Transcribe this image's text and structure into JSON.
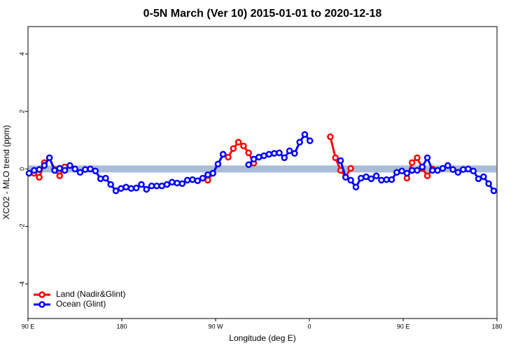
{
  "chart_data": {
    "type": "line",
    "title": "0-5N March (Ver 10)   2015-01-01 to 2020-12-18",
    "x_label": "Longitude (deg E)",
    "y_label": "XCO2 - MLO trend (ppm)",
    "x": [
      91,
      95.9,
      100.8,
      105.7,
      110.6,
      115.5,
      120.4,
      125.3,
      130.2,
      135.1,
      140,
      144.9,
      149.8,
      154.7,
      159.6,
      164.5,
      169.4,
      174.3,
      179.2,
      184.1,
      189,
      193.9,
      198.8,
      203.7,
      208.6,
      213.5,
      218.4,
      223.3,
      228.2,
      233.1,
      238,
      242.9,
      247.8,
      252.7,
      257.6,
      262.5,
      267.4,
      272.3,
      277.2,
      282.1,
      287,
      291.9,
      296.8,
      301.7,
      306.6,
      311.5,
      316.4,
      321.3,
      326.2,
      331.1,
      336,
      340.9,
      345.8,
      350.7,
      355.6,
      360.5,
      365.4,
      370.3,
      375.2,
      380.1,
      385,
      389.9,
      394.8,
      399.7,
      404.6,
      409.5,
      414.4,
      419.3,
      424.2,
      429.1,
      434,
      438.9,
      443.8,
      448.7,
      453.6,
      458.5,
      463.4,
      468.3,
      473.2,
      478.1,
      483,
      487.9,
      492.8,
      497.7,
      502.6,
      507.5,
      512.4,
      517.3,
      522.2,
      527.1,
      532,
      536.9
    ],
    "series": [
      {
        "name": "Land (Nadir&Glint)",
        "color": "#ff0000",
        "values": [
          null,
          -0.15,
          -0.29,
          0.22,
          0.39,
          -0.02,
          -0.24,
          0.07,
          null,
          null,
          null,
          null,
          null,
          null,
          null,
          null,
          null,
          null,
          null,
          null,
          null,
          null,
          null,
          null,
          null,
          null,
          null,
          null,
          null,
          null,
          null,
          null,
          null,
          null,
          null,
          -0.39,
          -0.15,
          0.17,
          0.51,
          0.41,
          0.71,
          0.93,
          0.8,
          0.56,
          0.2,
          null,
          null,
          null,
          null,
          null,
          null,
          null,
          null,
          null,
          null,
          null,
          null,
          null,
          null,
          1.12,
          0.39,
          -0.05,
          -0.27,
          0.02,
          null,
          null,
          null,
          null,
          null,
          null,
          null,
          null,
          null,
          null,
          -0.32,
          0.22,
          0.39,
          0.02,
          -0.24,
          0,
          null,
          null,
          null,
          null,
          null,
          null,
          null,
          null,
          null,
          null,
          null,
          null
        ]
      },
      {
        "name": "Ocean (Glint)",
        "color": "#0000ff",
        "values": [
          -0.15,
          -0.05,
          -0.02,
          0.12,
          0.39,
          -0.05,
          0.02,
          -0.05,
          0.12,
          0,
          -0.12,
          -0.02,
          0,
          -0.07,
          -0.34,
          -0.32,
          -0.54,
          -0.76,
          -0.68,
          -0.63,
          -0.68,
          -0.66,
          -0.54,
          -0.71,
          -0.59,
          -0.59,
          -0.59,
          -0.54,
          -0.46,
          -0.49,
          -0.51,
          -0.39,
          -0.37,
          -0.41,
          -0.32,
          -0.2,
          -0.15,
          0.17,
          0.51,
          null,
          null,
          null,
          null,
          0.15,
          0.34,
          0.41,
          0.46,
          0.51,
          0.54,
          0.56,
          0.39,
          0.63,
          0.54,
          0.93,
          1.2,
          0.98,
          null,
          null,
          null,
          null,
          null,
          0.29,
          -0.29,
          -0.39,
          -0.63,
          -0.32,
          -0.27,
          -0.34,
          -0.24,
          -0.39,
          -0.37,
          -0.37,
          -0.12,
          -0.07,
          -0.15,
          -0.05,
          -0.05,
          0.07,
          0.39,
          -0.05,
          -0.05,
          0.02,
          0.12,
          -0.02,
          -0.12,
          -0.02,
          0,
          -0.07,
          -0.34,
          -0.27,
          -0.51,
          -0.76
        ]
      }
    ],
    "xlim": [
      90,
      540
    ],
    "xticks": [
      {
        "value": 90,
        "label": "90 E"
      },
      {
        "value": 180,
        "label": "180"
      },
      {
        "value": 270,
        "label": "90 W"
      },
      {
        "value": 360,
        "label": "0"
      },
      {
        "value": 450,
        "label": "90 E"
      },
      {
        "value": 540,
        "label": "180"
      }
    ],
    "ylim": [
      -5.2,
      4.95
    ],
    "yticks": [
      -4,
      -2,
      0,
      2,
      4
    ],
    "band": {
      "y": 0,
      "color": "#a9bcd9"
    },
    "legend": "bottom-left"
  }
}
